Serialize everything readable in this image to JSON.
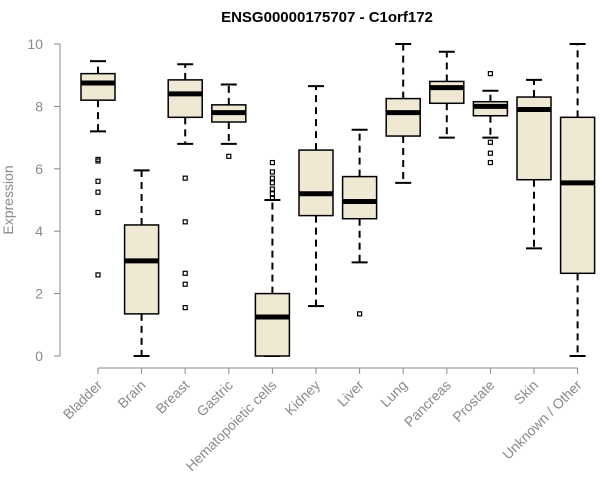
{
  "chart_data": {
    "type": "boxplot",
    "title": "ENSG00000175707 - C1orf172",
    "xlabel": "",
    "ylabel": "Expression",
    "ylim": [
      0,
      10
    ],
    "yticks": [
      0,
      2,
      4,
      6,
      8,
      10
    ],
    "grid": false,
    "legend": "none",
    "box_fill": "#efe8d2",
    "categories": [
      "Bladder",
      "Brain",
      "Breast",
      "Gastric",
      "Hematopoietic cells",
      "Kidney",
      "Liver",
      "Lung",
      "Pancreas",
      "Prostate",
      "Skin",
      "Unknown / Other"
    ],
    "boxes": [
      {
        "category": "Bladder",
        "whisker_low": 7.2,
        "q1": 8.2,
        "median": 8.75,
        "q3": 9.05,
        "whisker_high": 9.45,
        "outliers": [
          6.3,
          6.25,
          5.6,
          5.25,
          4.6,
          2.6
        ]
      },
      {
        "category": "Brain",
        "whisker_low": 0.0,
        "q1": 1.35,
        "median": 3.05,
        "q3": 4.2,
        "whisker_high": 5.95,
        "outliers": []
      },
      {
        "category": "Breast",
        "whisker_low": 6.8,
        "q1": 7.65,
        "median": 8.4,
        "q3": 8.85,
        "whisker_high": 9.35,
        "outliers": [
          5.7,
          4.3,
          2.65,
          2.3,
          1.55
        ]
      },
      {
        "category": "Gastric",
        "whisker_low": 6.8,
        "q1": 7.5,
        "median": 7.8,
        "q3": 8.05,
        "whisker_high": 8.7,
        "outliers": [
          6.4
        ]
      },
      {
        "category": "Hematopoietic cells",
        "whisker_low": 0.0,
        "q1": 0.0,
        "median": 1.25,
        "q3": 2.0,
        "whisker_high": 5.0,
        "outliers": [
          6.2,
          5.9,
          5.7,
          5.55,
          5.35,
          5.2,
          5.05
        ]
      },
      {
        "category": "Kidney",
        "whisker_low": 1.6,
        "q1": 4.5,
        "median": 5.2,
        "q3": 6.6,
        "whisker_high": 8.65,
        "outliers": []
      },
      {
        "category": "Liver",
        "whisker_low": 3.0,
        "q1": 4.4,
        "median": 4.95,
        "q3": 5.75,
        "whisker_high": 7.25,
        "outliers": [
          1.35
        ]
      },
      {
        "category": "Lung",
        "whisker_low": 5.55,
        "q1": 7.05,
        "median": 7.8,
        "q3": 8.25,
        "whisker_high": 10.0,
        "outliers": []
      },
      {
        "category": "Pancreas",
        "whisker_low": 7.0,
        "q1": 8.1,
        "median": 8.6,
        "q3": 8.8,
        "whisker_high": 9.75,
        "outliers": []
      },
      {
        "category": "Prostate",
        "whisker_low": 7.0,
        "q1": 7.7,
        "median": 8.0,
        "q3": 8.15,
        "whisker_high": 8.5,
        "outliers": [
          9.05,
          6.85,
          6.5,
          6.2
        ]
      },
      {
        "category": "Skin",
        "whisker_low": 3.45,
        "q1": 5.65,
        "median": 7.9,
        "q3": 8.3,
        "whisker_high": 8.85,
        "outliers": []
      },
      {
        "category": "Unknown / Other",
        "whisker_low": 0.0,
        "q1": 2.65,
        "median": 5.55,
        "q3": 7.65,
        "whisker_high": 10.0,
        "outliers": []
      }
    ]
  }
}
